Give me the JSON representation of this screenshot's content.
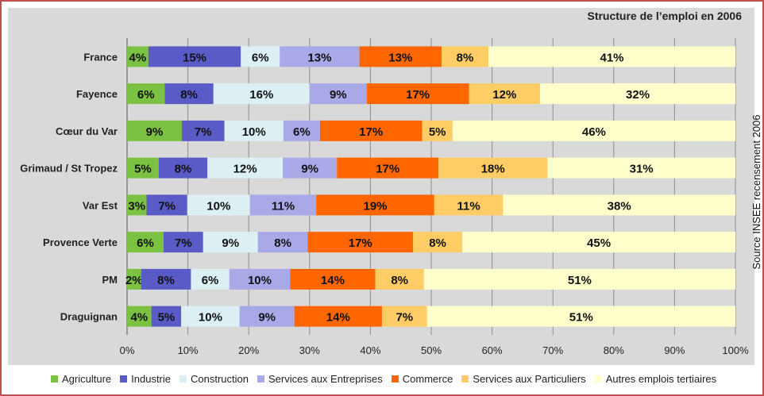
{
  "chart_data": {
    "type": "bar",
    "orientation": "horizontal",
    "stacked": true,
    "title": "Structure de l’emploi en 2006",
    "source_note": "Source INSEE recensement 2006",
    "categories": [
      "France",
      "Fayence",
      "Cœur du Var",
      "Grimaud / St Tropez",
      "Var Est",
      "Provence Verte",
      "PM",
      "Draguignan"
    ],
    "xlim": [
      0,
      100
    ],
    "x_ticks": [
      "0%",
      "10%",
      "20%",
      "30%",
      "40%",
      "50%",
      "60%",
      "70%",
      "80%",
      "90%",
      "100%"
    ],
    "grid": true,
    "legend_position": "bottom",
    "series": [
      {
        "name": "Agriculture",
        "color": "#7cc242",
        "values": [
          3.5,
          6.2,
          9.0,
          5.2,
          3.2,
          6.0,
          2.3,
          4.0
        ]
      },
      {
        "name": "Industrie",
        "color": "#5b5bc8",
        "values": [
          15.2,
          8.0,
          7.0,
          8.0,
          6.7,
          6.5,
          8.2,
          4.9
        ]
      },
      {
        "name": "Construction",
        "color": "#dcf0f4",
        "values": [
          6.4,
          15.8,
          9.7,
          12.4,
          10.3,
          9.0,
          6.3,
          9.6
        ]
      },
      {
        "name": "Services aux Entreprises",
        "color": "#a9a9e8",
        "values": [
          13.1,
          9.4,
          6.0,
          8.9,
          10.9,
          8.2,
          10.0,
          9.0
        ]
      },
      {
        "name": "Commerce",
        "color": "#ff6600",
        "values": [
          13.5,
          16.8,
          16.8,
          16.7,
          19.4,
          17.3,
          14.0,
          14.4
        ]
      },
      {
        "name": "Services aux Particuliers",
        "color": "#ffcc66",
        "values": [
          7.7,
          11.7,
          5.0,
          17.9,
          11.3,
          8.1,
          8.0,
          7.4
        ]
      },
      {
        "name": "Autres emplois tertiaires",
        "color": "#ffffcc",
        "values": [
          40.6,
          32.1,
          46.5,
          30.9,
          38.2,
          44.9,
          51.2,
          50.7
        ]
      }
    ],
    "data_labels": [
      [
        "4%",
        "15%",
        "6%",
        "13%",
        "13%",
        "8%",
        "41%"
      ],
      [
        "6%",
        "8%",
        "16%",
        "9%",
        "17%",
        "12%",
        "32%"
      ],
      [
        "9%",
        "7%",
        "10%",
        "6%",
        "17%",
        "5%",
        "46%"
      ],
      [
        "5%",
        "8%",
        "12%",
        "9%",
        "17%",
        "18%",
        "31%"
      ],
      [
        "3%",
        "7%",
        "10%",
        "11%",
        "19%",
        "11%",
        "38%"
      ],
      [
        "6%",
        "7%",
        "9%",
        "8%",
        "17%",
        "8%",
        "45%"
      ],
      [
        "2%",
        "8%",
        "6%",
        "10%",
        "14%",
        "8%",
        "51%"
      ],
      [
        "4%",
        "5%",
        "10%",
        "9%",
        "14%",
        "7%",
        "51%"
      ]
    ]
  }
}
